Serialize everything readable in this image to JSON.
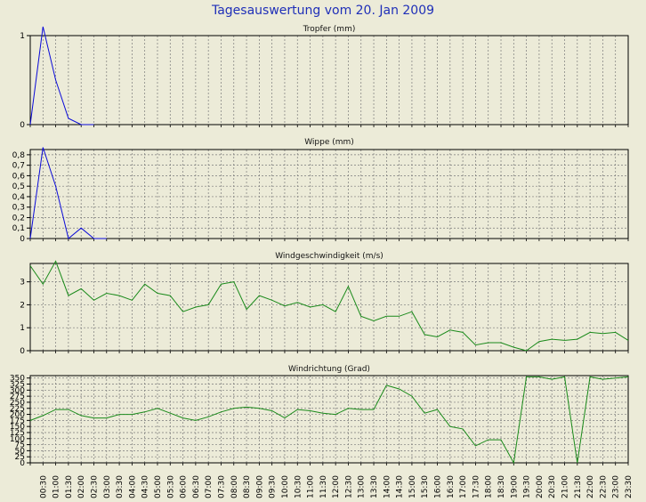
{
  "title": "Tagesauswertung vom 20. Jan 2009",
  "colors": {
    "background": "#ecebd8",
    "title": "#1f2fb8",
    "axis": "#000000",
    "grid": "#7a7a7a",
    "blue_series": "#0a0ad8",
    "green_series": "#1a8a1a"
  },
  "time_labels": [
    "00:30",
    "01:00",
    "01:30",
    "02:00",
    "02:30",
    "03:00",
    "03:30",
    "04:00",
    "04:30",
    "05:00",
    "05:30",
    "06:00",
    "06:30",
    "07:00",
    "07:30",
    "08:00",
    "08:30",
    "09:00",
    "09:30",
    "10:00",
    "10:30",
    "11:00",
    "11:30",
    "12:00",
    "12:30",
    "13:00",
    "13:30",
    "14:00",
    "14:30",
    "15:00",
    "15:30",
    "16:00",
    "16:30",
    "17:00",
    "17:30",
    "18:00",
    "18:30",
    "19:00",
    "19:30",
    "20:00",
    "20:30",
    "21:00",
    "21:30",
    "22:00",
    "22:30",
    "23:00",
    "23:30"
  ],
  "chart_data": [
    {
      "type": "line",
      "title": "Tropfer (mm)",
      "color": "blue",
      "grid": true,
      "ylim": [
        0,
        1
      ],
      "yticks": [
        "0",
        "1"
      ],
      "ytick_values": [
        0,
        1
      ],
      "x": [
        "00:00",
        "00:30",
        "01:00",
        "01:30",
        "02:00",
        "02:30"
      ],
      "values": [
        0,
        1.1,
        0.5,
        0.07,
        0,
        0
      ]
    },
    {
      "type": "line",
      "title": "Wippe (mm)",
      "color": "blue",
      "grid": true,
      "ylim": [
        0,
        0.85
      ],
      "yticks": [
        "0",
        "0,1",
        "0,2",
        "0,3",
        "0,4",
        "0,5",
        "0,6",
        "0,7",
        "0,8"
      ],
      "ytick_values": [
        0,
        0.1,
        0.2,
        0.3,
        0.4,
        0.5,
        0.6,
        0.7,
        0.8
      ],
      "x": [
        "00:00",
        "00:30",
        "01:00",
        "01:30",
        "02:00",
        "02:30",
        "03:00"
      ],
      "values": [
        0,
        0.87,
        0.5,
        0,
        0.1,
        0,
        0
      ]
    },
    {
      "type": "line",
      "title": "Windgeschwindigkeit (m/s)",
      "color": "green",
      "grid": true,
      "ylim": [
        0,
        3.8
      ],
      "yticks": [
        "0",
        "1",
        "2",
        "3"
      ],
      "ytick_values": [
        0,
        1,
        2,
        3
      ],
      "values": [
        3.7,
        2.9,
        3.9,
        2.4,
        2.7,
        2.2,
        2.5,
        2.4,
        2.2,
        2.9,
        2.5,
        2.4,
        1.7,
        1.9,
        2.0,
        2.9,
        3.0,
        1.8,
        2.4,
        2.2,
        1.95,
        2.1,
        1.9,
        2.0,
        1.7,
        2.8,
        1.5,
        1.3,
        1.5,
        1.5,
        1.7,
        0.7,
        0.6,
        0.9,
        0.8,
        0.25,
        0.35,
        0.35,
        0.15,
        0,
        0.4,
        0.5,
        0.45,
        0.5,
        0.8,
        0.75,
        0.8,
        0.45
      ]
    },
    {
      "type": "line",
      "title": "Windrichtung (Grad)",
      "color": "green",
      "grid": true,
      "ylim": [
        0,
        360
      ],
      "yticks": [
        "0",
        "25",
        "50",
        "75",
        "100",
        "125",
        "150",
        "175",
        "200",
        "225",
        "250",
        "275",
        "300",
        "325",
        "350"
      ],
      "ytick_values": [
        0,
        25,
        50,
        75,
        100,
        125,
        150,
        175,
        200,
        225,
        250,
        275,
        300,
        325,
        350
      ],
      "values": [
        175,
        195,
        220,
        220,
        195,
        185,
        185,
        200,
        200,
        210,
        225,
        205,
        185,
        175,
        190,
        210,
        225,
        230,
        225,
        215,
        185,
        220,
        215,
        205,
        200,
        225,
        220,
        220,
        320,
        305,
        275,
        205,
        220,
        150,
        140,
        70,
        95,
        95,
        0,
        355,
        355,
        345,
        355,
        0,
        355,
        345,
        350,
        355
      ]
    }
  ]
}
